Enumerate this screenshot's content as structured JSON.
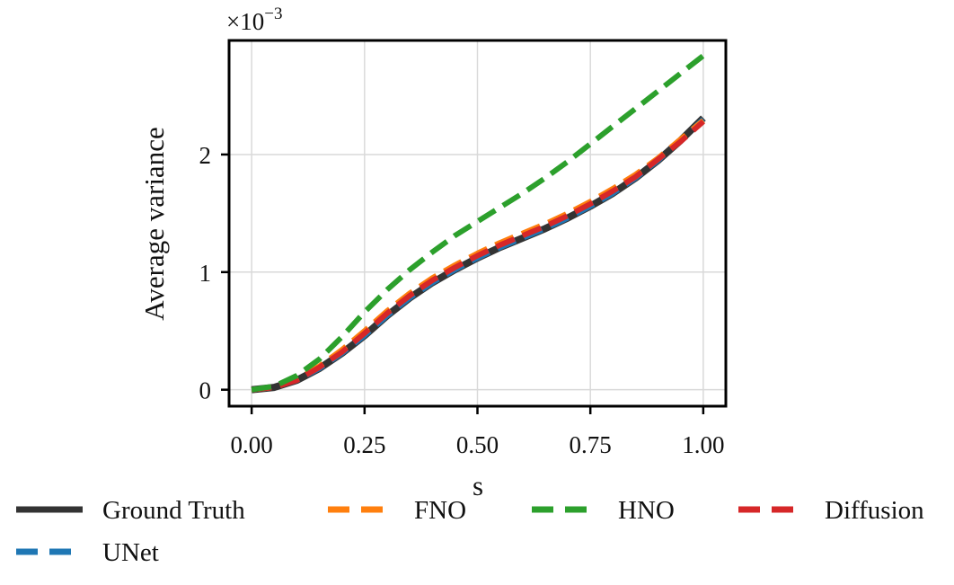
{
  "chart_data": {
    "type": "line",
    "xlabel": "s",
    "ylabel": "Average variance",
    "y_multiplier_label": "×10",
    "y_multiplier_exponent": "−3",
    "xlim": [
      -0.05,
      1.05
    ],
    "ylim": [
      -0.00014,
      0.00297
    ],
    "x_ticks": [
      0.0,
      0.25,
      0.5,
      0.75,
      1.0
    ],
    "x_tick_labels": [
      "0.00",
      "0.25",
      "0.50",
      "0.75",
      "1.00"
    ],
    "y_ticks": [
      0,
      0.001,
      0.002
    ],
    "y_tick_labels": [
      "0",
      "1",
      "2"
    ],
    "grid": true,
    "legend_position": "bottom",
    "series": [
      {
        "name": "Ground Truth",
        "color": "#333333",
        "dash": "solid",
        "x": [
          0.0,
          0.05,
          0.1,
          0.15,
          0.2,
          0.25,
          0.3,
          0.35,
          0.4,
          0.45,
          0.5,
          0.55,
          0.6,
          0.65,
          0.7,
          0.75,
          0.8,
          0.85,
          0.9,
          0.95,
          1.0
        ],
        "y": [
          0.0,
          2e-05,
          8e-05,
          0.00018,
          0.00031,
          0.00046,
          0.00063,
          0.00078,
          0.00091,
          0.00102,
          0.00112,
          0.00121,
          0.00129,
          0.00137,
          0.00146,
          0.00156,
          0.00167,
          0.0018,
          0.00195,
          0.00212,
          0.00231
        ]
      },
      {
        "name": "UNet",
        "color": "#1f77b4",
        "dash": "dashed",
        "x": [
          0.0,
          0.05,
          0.1,
          0.15,
          0.2,
          0.25,
          0.3,
          0.35,
          0.4,
          0.45,
          0.5,
          0.55,
          0.6,
          0.65,
          0.7,
          0.75,
          0.8,
          0.85,
          0.9,
          0.95,
          1.0
        ],
        "y": [
          0.0,
          2e-05,
          8e-05,
          0.00018,
          0.00031,
          0.00046,
          0.00063,
          0.00078,
          0.00091,
          0.00102,
          0.00112,
          0.00121,
          0.00129,
          0.00137,
          0.00146,
          0.00156,
          0.00167,
          0.0018,
          0.00195,
          0.00212,
          0.0023
        ]
      },
      {
        "name": "FNO",
        "color": "#ff7f0e",
        "dash": "dashed",
        "x": [
          0.0,
          0.05,
          0.1,
          0.15,
          0.2,
          0.25,
          0.3,
          0.35,
          0.4,
          0.45,
          0.5,
          0.55,
          0.6,
          0.65,
          0.7,
          0.75,
          0.8,
          0.85,
          0.9,
          0.95,
          1.0
        ],
        "y": [
          0.0,
          2e-05,
          9e-05,
          0.0002,
          0.00034,
          0.0005,
          0.00067,
          0.00082,
          0.00095,
          0.00106,
          0.00116,
          0.00125,
          0.00133,
          0.00141,
          0.0015,
          0.0016,
          0.00171,
          0.00183,
          0.00197,
          0.00213,
          0.00229
        ]
      },
      {
        "name": "HNO",
        "color": "#2ca02c",
        "dash": "dashed",
        "x": [
          0.0,
          0.05,
          0.1,
          0.15,
          0.2,
          0.25,
          0.3,
          0.35,
          0.4,
          0.45,
          0.5,
          0.55,
          0.6,
          0.65,
          0.7,
          0.75,
          0.8,
          0.85,
          0.9,
          0.95,
          1.0
        ],
        "y": [
          0.0,
          3e-05,
          0.00012,
          0.00026,
          0.00045,
          0.00066,
          0.00085,
          0.00102,
          0.00117,
          0.00131,
          0.00143,
          0.00155,
          0.00167,
          0.0018,
          0.00194,
          0.00209,
          0.00224,
          0.00239,
          0.00254,
          0.00269,
          0.00284
        ]
      },
      {
        "name": "Diffusion",
        "color": "#d62728",
        "dash": "dashed",
        "x": [
          0.0,
          0.05,
          0.1,
          0.15,
          0.2,
          0.25,
          0.3,
          0.35,
          0.4,
          0.45,
          0.5,
          0.55,
          0.6,
          0.65,
          0.7,
          0.75,
          0.8,
          0.85,
          0.9,
          0.95,
          1.0
        ],
        "y": [
          0.0,
          2e-05,
          8e-05,
          0.00019,
          0.00032,
          0.00048,
          0.00065,
          0.0008,
          0.00093,
          0.00104,
          0.00114,
          0.00123,
          0.00131,
          0.00139,
          0.00148,
          0.00158,
          0.00169,
          0.00181,
          0.00196,
          0.00211,
          0.00228
        ]
      }
    ]
  }
}
